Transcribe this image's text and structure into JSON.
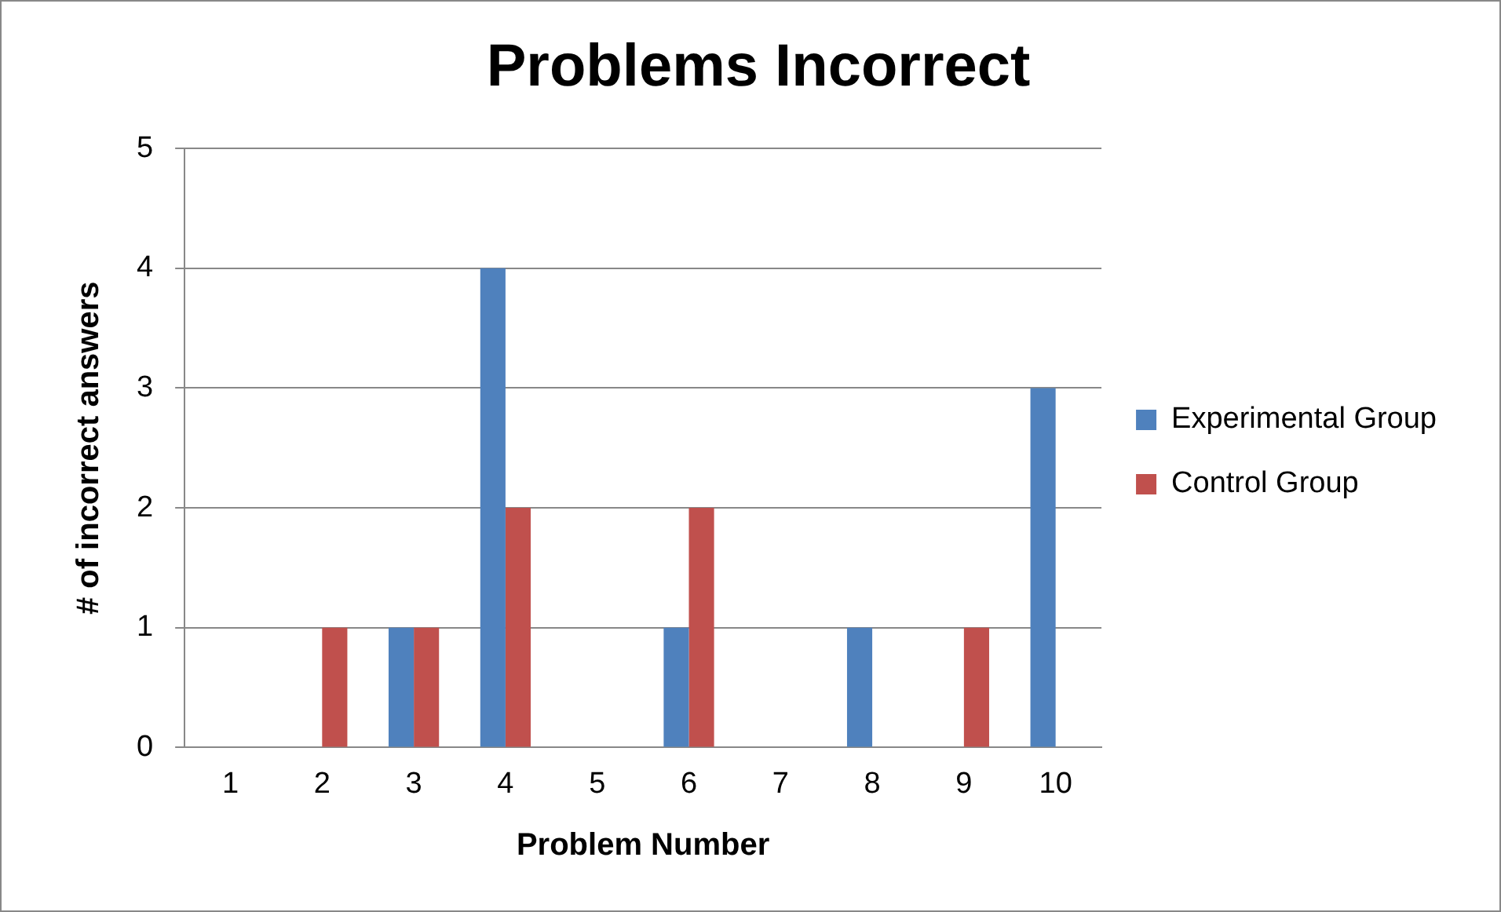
{
  "chart_data": {
    "type": "bar",
    "title": "Problems Incorrect",
    "xlabel": "Problem Number",
    "ylabel": "# of incorrect answers",
    "categories": [
      "1",
      "2",
      "3",
      "4",
      "5",
      "6",
      "7",
      "8",
      "9",
      "10"
    ],
    "series": [
      {
        "name": "Experimental Group",
        "color": "#4f81bd",
        "values": [
          0,
          0,
          1,
          4,
          0,
          1,
          0,
          1,
          0,
          3
        ]
      },
      {
        "name": "Control Group",
        "color": "#c0504d",
        "values": [
          0,
          1,
          1,
          2,
          0,
          2,
          0,
          0,
          1,
          0
        ]
      }
    ],
    "ylim": [
      0,
      5
    ],
    "yticks": [
      0,
      1,
      2,
      3,
      4,
      5
    ],
    "grid": "y",
    "legend": "right"
  }
}
